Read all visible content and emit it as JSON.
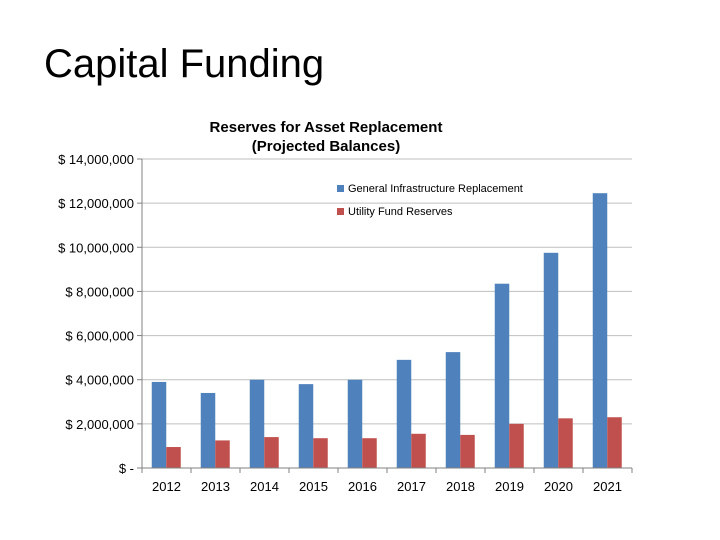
{
  "slide": {
    "title": "Capital Funding"
  },
  "colors": {
    "series_1": "#4F81BD",
    "series_2": "#C0504D",
    "grid": "#BFBFBF",
    "axis": "#808080"
  },
  "chart_data": {
    "type": "bar",
    "title": "Reserves for Asset Replacement",
    "subtitle": "(Projected Balances)",
    "xlabel": "",
    "ylabel": "",
    "categories": [
      "2012",
      "2013",
      "2014",
      "2015",
      "2016",
      "2017",
      "2018",
      "2019",
      "2020",
      "2021"
    ],
    "series": [
      {
        "name": "General Infrastructure Replacement",
        "values": [
          3900000,
          3400000,
          4000000,
          3800000,
          4000000,
          4900000,
          5250000,
          8350000,
          9750000,
          12450000
        ]
      },
      {
        "name": "Utility Fund Reserves",
        "values": [
          950000,
          1250000,
          1400000,
          1350000,
          1350000,
          1550000,
          1500000,
          2000000,
          2250000,
          2300000
        ]
      }
    ],
    "ylim": [
      0,
      14000000
    ],
    "yticks": [
      0,
      2000000,
      4000000,
      6000000,
      8000000,
      10000000,
      12000000,
      14000000
    ],
    "ytick_labels": [
      "$ -",
      "$ 2,000,000",
      "$ 4,000,000",
      "$ 6,000,000",
      "$ 8,000,000",
      "$ 10,000,000",
      "$ 12,000,000",
      "$ 14,000,000"
    ],
    "grid": true,
    "legend_position": "top-right"
  }
}
